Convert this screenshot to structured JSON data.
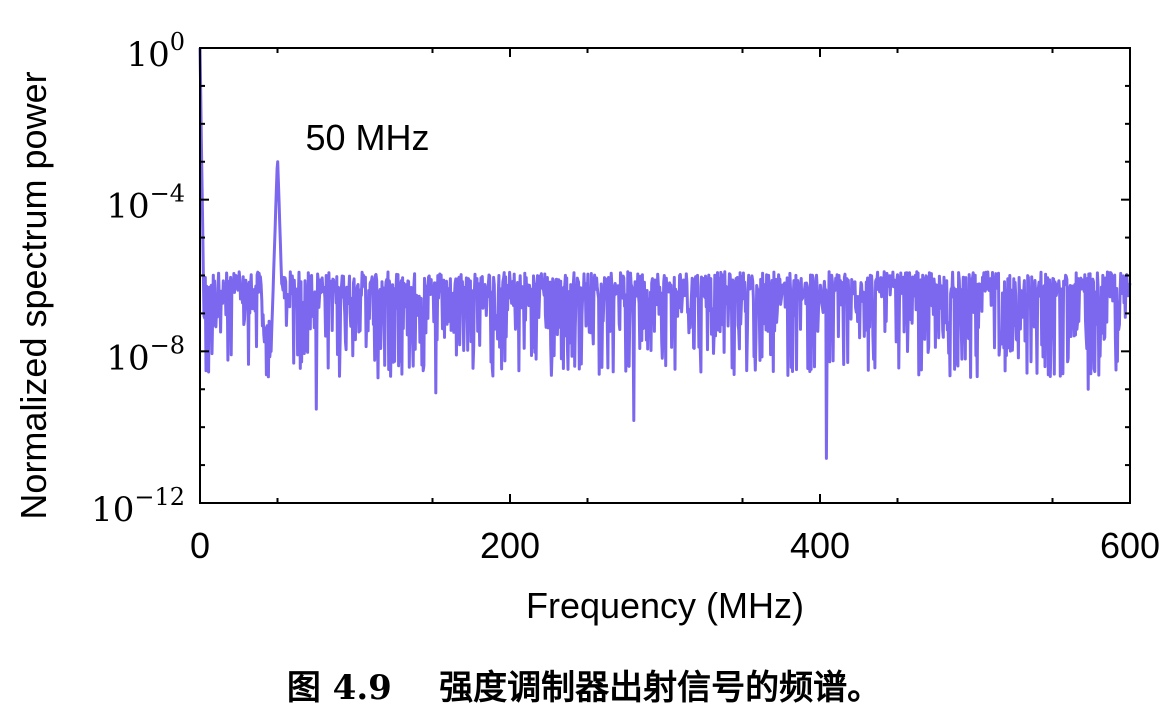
{
  "caption": "图 4.9    强度调制器出射信号的频谱。",
  "chart_data": {
    "type": "line",
    "xlabel": "Frequency (MHz)",
    "ylabel": "Normalized spectrum power",
    "xlim": [
      0,
      600
    ],
    "ylim_log10": [
      -12,
      0
    ],
    "y_scale": "log",
    "xticks": [
      0,
      200,
      400,
      600
    ],
    "xtick_labels": [
      "0",
      "200",
      "400",
      "600"
    ],
    "yticks_log10": [
      0,
      -4,
      -8,
      -12
    ],
    "ytick_labels": [
      {
        "base": "10",
        "exp": "0"
      },
      {
        "base": "10",
        "exp": "−4"
      },
      {
        "base": "10",
        "exp": "−8"
      },
      {
        "base": "10",
        "exp": "−12"
      }
    ],
    "grid": false,
    "series": [
      {
        "color": "#7b68ee",
        "noise_floor_log10": [
          -7.5,
          -5.9
        ],
        "peaks": [
          {
            "x": 0,
            "y": 1
          },
          {
            "x": 50,
            "y": 0.0015
          }
        ],
        "deep_dips": [
          {
            "x": 75,
            "y": 3e-10
          },
          {
            "x": 152,
            "y": 8e-10
          },
          {
            "x": 280,
            "y": 1.5e-10
          },
          {
            "x": 404,
            "y": 1.5e-11
          },
          {
            "x": 573,
            "y": 1e-09
          }
        ]
      }
    ],
    "annotations": [
      {
        "text": "50 MHz",
        "x": 50,
        "y": 0.0015
      }
    ]
  }
}
